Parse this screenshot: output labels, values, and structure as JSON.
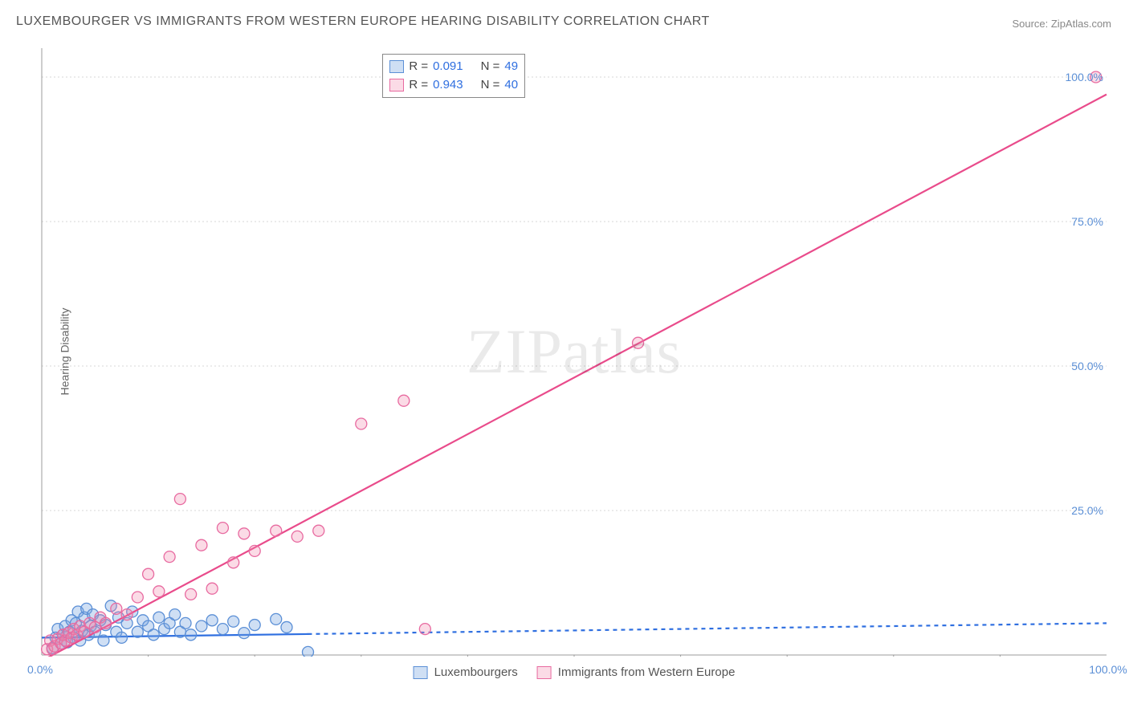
{
  "title": "LUXEMBOURGER VS IMMIGRANTS FROM WESTERN EUROPE HEARING DISABILITY CORRELATION CHART",
  "source": "Source: ZipAtlas.com",
  "ylabel": "Hearing Disability",
  "watermark_a": "ZIP",
  "watermark_b": "atlas",
  "chart": {
    "type": "scatter",
    "xlim": [
      0,
      100
    ],
    "ylim": [
      0,
      105
    ],
    "yticks": [
      25,
      50,
      75,
      100
    ],
    "ytick_labels": [
      "25.0%",
      "50.0%",
      "75.0%",
      "100.0%"
    ],
    "xtick_min": "0.0%",
    "xtick_max": "100.0%",
    "grid_color": "#d7d7d7",
    "axis_color": "#9b9b9b",
    "background": "#ffffff",
    "marker_radius": 7,
    "marker_stroke_width": 1.3,
    "line_width": 2.2,
    "series": [
      {
        "id": "lux",
        "label": "Luxembourgers",
        "color_fill": "rgba(118,163,224,0.35)",
        "color_stroke": "#5b8fd6",
        "line_color": "#2f6fe0",
        "line_dash": "5 5",
        "line_solid_until_x": 25,
        "trend": {
          "x1": 0,
          "y1": 3.0,
          "x2": 100,
          "y2": 5.5
        },
        "R": "0.091",
        "N": "49",
        "points": [
          [
            1,
            1.2
          ],
          [
            1.3,
            3.0
          ],
          [
            1.5,
            4.5
          ],
          [
            1.8,
            2.0
          ],
          [
            2.0,
            3.5
          ],
          [
            2.2,
            5.0
          ],
          [
            2.4,
            2.2
          ],
          [
            2.6,
            4.0
          ],
          [
            2.8,
            6.0
          ],
          [
            3.0,
            3.0
          ],
          [
            3.2,
            5.5
          ],
          [
            3.4,
            7.5
          ],
          [
            3.6,
            2.5
          ],
          [
            3.8,
            4.2
          ],
          [
            4.0,
            6.5
          ],
          [
            4.2,
            8.0
          ],
          [
            4.4,
            3.5
          ],
          [
            4.6,
            5.0
          ],
          [
            4.8,
            7.0
          ],
          [
            5.0,
            4.0
          ],
          [
            5.5,
            6.0
          ],
          [
            5.8,
            2.5
          ],
          [
            6.0,
            5.2
          ],
          [
            6.5,
            8.5
          ],
          [
            7.0,
            4.0
          ],
          [
            7.2,
            6.5
          ],
          [
            7.5,
            3.0
          ],
          [
            8.0,
            5.5
          ],
          [
            8.5,
            7.5
          ],
          [
            9.0,
            4.0
          ],
          [
            9.5,
            6.0
          ],
          [
            10.0,
            5.0
          ],
          [
            10.5,
            3.5
          ],
          [
            11.0,
            6.5
          ],
          [
            11.5,
            4.5
          ],
          [
            12.0,
            5.5
          ],
          [
            12.5,
            7.0
          ],
          [
            13.0,
            4.0
          ],
          [
            13.5,
            5.5
          ],
          [
            14.0,
            3.5
          ],
          [
            15.0,
            5.0
          ],
          [
            16.0,
            6.0
          ],
          [
            17.0,
            4.5
          ],
          [
            18.0,
            5.8
          ],
          [
            19.0,
            3.8
          ],
          [
            20.0,
            5.2
          ],
          [
            22.0,
            6.2
          ],
          [
            23.0,
            4.8
          ],
          [
            25.0,
            0.5
          ]
        ]
      },
      {
        "id": "imm",
        "label": "Immigrants from Western Europe",
        "color_fill": "rgba(243,135,172,0.30)",
        "color_stroke": "#e86aa0",
        "line_color": "#e94b8b",
        "line_dash": "",
        "trend": {
          "x1": 0,
          "y1": -1.0,
          "x2": 100,
          "y2": 97.0
        },
        "R": "0.943",
        "N": "40",
        "points": [
          [
            0.5,
            1.0
          ],
          [
            0.8,
            2.5
          ],
          [
            1.0,
            1.0
          ],
          [
            1.2,
            1.5
          ],
          [
            1.5,
            2.8
          ],
          [
            1.8,
            2.0
          ],
          [
            2.0,
            3.5
          ],
          [
            2.2,
            2.5
          ],
          [
            2.5,
            3.8
          ],
          [
            2.8,
            3.0
          ],
          [
            3.0,
            4.5
          ],
          [
            3.3,
            3.5
          ],
          [
            3.6,
            5.0
          ],
          [
            4.0,
            4.0
          ],
          [
            4.5,
            5.5
          ],
          [
            5.0,
            4.8
          ],
          [
            5.5,
            6.5
          ],
          [
            6.0,
            5.5
          ],
          [
            7.0,
            8.0
          ],
          [
            8.0,
            7.0
          ],
          [
            9.0,
            10.0
          ],
          [
            10.0,
            14.0
          ],
          [
            11.0,
            11.0
          ],
          [
            12.0,
            17.0
          ],
          [
            13.0,
            27.0
          ],
          [
            14.0,
            10.5
          ],
          [
            15.0,
            19.0
          ],
          [
            16.0,
            11.5
          ],
          [
            17.0,
            22.0
          ],
          [
            18.0,
            16.0
          ],
          [
            19.0,
            21.0
          ],
          [
            20.0,
            18.0
          ],
          [
            22.0,
            21.5
          ],
          [
            24.0,
            20.5
          ],
          [
            26.0,
            21.5
          ],
          [
            30.0,
            40.0
          ],
          [
            34.0,
            44.0
          ],
          [
            36.0,
            4.5
          ],
          [
            56.0,
            54.0
          ],
          [
            99.0,
            100.0
          ]
        ]
      }
    ]
  },
  "stats_box": {
    "rows": [
      {
        "swatch_fill": "rgba(118,163,224,0.35)",
        "swatch_border": "#5b8fd6",
        "r_label": "R =",
        "r_val": "0.091",
        "n_label": "N =",
        "n_val": "49"
      },
      {
        "swatch_fill": "rgba(243,135,172,0.30)",
        "swatch_border": "#e86aa0",
        "r_label": "R =",
        "r_val": "0.943",
        "n_label": "N =",
        "n_val": "40"
      }
    ]
  },
  "x_axis_ticks_minor": [
    10,
    20,
    30,
    40,
    50,
    60,
    70,
    80,
    90
  ]
}
